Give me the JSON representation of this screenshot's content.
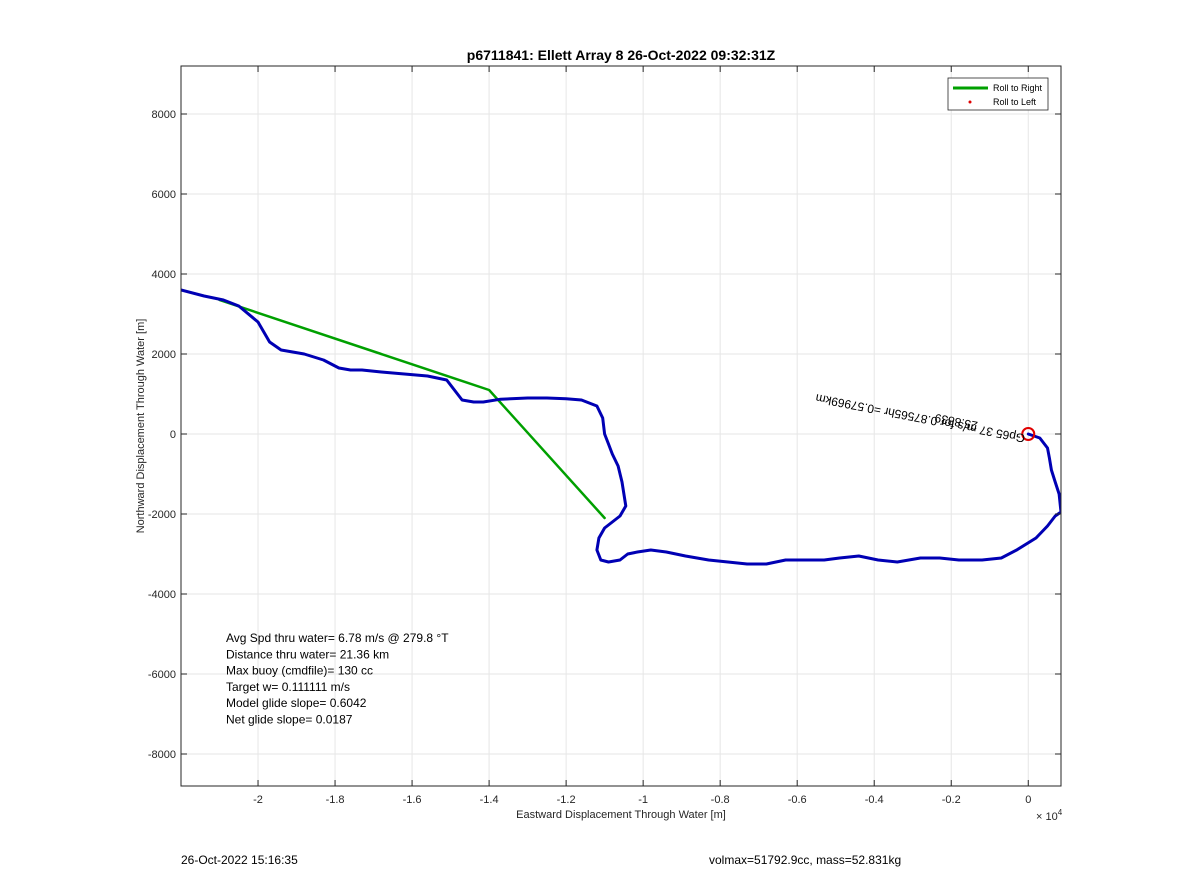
{
  "chart_data": {
    "type": "line",
    "title": "p6711841: Ellett Array 8 26-Oct-2022 09:32:31Z",
    "xlabel": "Eastward Displacement Through Water [m]",
    "ylabel": "Northward Displacement Through Water [m]",
    "x_exponent_label": "× 10",
    "x_exponent_power": "4",
    "xlim": [
      -22000,
      850
    ],
    "ylim": [
      -8800,
      9200
    ],
    "x_ticks": [
      -20000,
      -18000,
      -16000,
      -14000,
      -12000,
      -10000,
      -8000,
      -6000,
      -4000,
      -2000,
      0
    ],
    "x_tick_labels": [
      "-2",
      "-1.8",
      "-1.6",
      "-1.4",
      "-1.2",
      "-1",
      "-0.8",
      "-0.6",
      "-0.4",
      "-0.2",
      "0"
    ],
    "y_ticks": [
      -8000,
      -6000,
      -4000,
      -2000,
      0,
      2000,
      4000,
      6000,
      8000
    ],
    "y_tick_labels": [
      "-8000",
      "-6000",
      "-4000",
      "-2000",
      "0",
      "2000",
      "4000",
      "6000",
      "8000"
    ],
    "grid": true,
    "legend_position": "top-right",
    "legend": [
      {
        "label": "Roll to Right",
        "color": "#00a000",
        "style": "line"
      },
      {
        "label": "Roll to Left",
        "color": "#e00000",
        "style": "point"
      }
    ],
    "series": [
      {
        "color": "#0000b4",
        "x": [
          -22000,
          -21400,
          -20900,
          -20500,
          -20000,
          -19700,
          -19400,
          -19100,
          -18800,
          -18300,
          -17900,
          -17600,
          -17300,
          -16800,
          -16200,
          -15600,
          -15100,
          -14900,
          -14700,
          -14400,
          -14150,
          -13700,
          -13000,
          -12500,
          -12000,
          -11600,
          -11200,
          -11050,
          -11000,
          -10900,
          -10800,
          -10650,
          -10550,
          -10500,
          -10450,
          -10600,
          -10800,
          -11000,
          -11150,
          -11200,
          -11100,
          -10900,
          -10600,
          -10400,
          -10150,
          -9800,
          -9400,
          -8900,
          -8300,
          -7800,
          -7300,
          -6800,
          -6300,
          -5800,
          -5300,
          -4900,
          -4400,
          -3900,
          -3400,
          -2800,
          -2300,
          -1800,
          -1200,
          -700,
          -300,
          200,
          500,
          700,
          850,
          800,
          700,
          600,
          550,
          500,
          300,
          0
        ],
        "y": [
          3600,
          3450,
          3350,
          3200,
          2800,
          2300,
          2100,
          2050,
          2000,
          1850,
          1650,
          1600,
          1600,
          1550,
          1500,
          1450,
          1350,
          1100,
          850,
          800,
          800,
          870,
          900,
          900,
          880,
          850,
          700,
          400,
          0,
          -250,
          -500,
          -800,
          -1200,
          -1500,
          -1800,
          -2050,
          -2200,
          -2350,
          -2600,
          -2900,
          -3150,
          -3200,
          -3150,
          -3000,
          -2950,
          -2900,
          -2950,
          -3050,
          -3150,
          -3200,
          -3250,
          -3250,
          -3150,
          -3150,
          -3150,
          -3100,
          -3050,
          -3150,
          -3200,
          -3100,
          -3100,
          -3150,
          -3150,
          -3100,
          -2900,
          -2600,
          -2300,
          -2050,
          -1950,
          -1500,
          -1200,
          -900,
          -600,
          -350,
          -100,
          0
        ]
      },
      {
        "color": "#00a000",
        "x": [
          -21000,
          -14000,
          -11000
        ],
        "y": [
          3350,
          1100,
          -2100
        ]
      }
    ],
    "markers": [
      {
        "shape": "circle",
        "color": "#e00000",
        "x": 0,
        "y": 0
      }
    ],
    "annotations": [
      {
        "text": "Gp65 37 m/s for 0.87565hr =0.57969km",
        "x": -5500,
        "y": 1000,
        "rotation": 191
      },
      {
        "text": "25.8839",
        "x": -1300,
        "y": 300,
        "rotation": 191
      }
    ]
  },
  "stats": [
    "Avg Spd thru water=  6.78 m/s @ 279.8 °T",
    "Distance thru water= 21.36 km",
    "Max buoy (cmdfile)= 130 cc",
    "Target w= 0.111111 m/s",
    "Model glide slope= 0.6042",
    "Net glide slope= 0.0187"
  ],
  "footer": {
    "left": "26-Oct-2022 15:16:35",
    "right": "volmax=51792.9cc, mass=52.831kg"
  }
}
